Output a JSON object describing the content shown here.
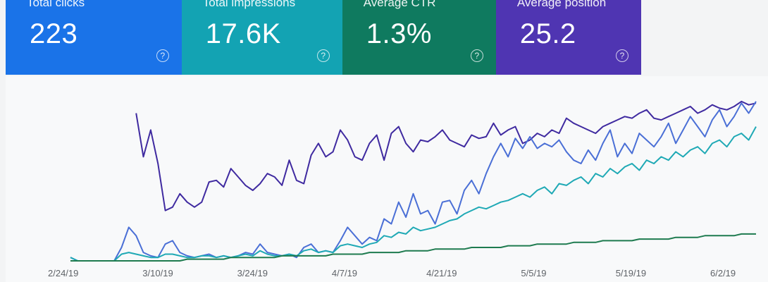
{
  "metrics": [
    {
      "label": "Total clicks",
      "value": "223",
      "help": "?",
      "color": "#1a73e8"
    },
    {
      "label": "Total impressions",
      "value": "17.6K",
      "help": "?",
      "color": "#13a3b3"
    },
    {
      "label": "Average CTR",
      "value": "1.3%",
      "help": "?",
      "color": "#0f7a5f"
    },
    {
      "label": "Average position",
      "value": "25.2",
      "help": "?",
      "color": "#4f35b2"
    }
  ],
  "chart_data": {
    "type": "line",
    "x_tick_labels": [
      "2/24/19",
      "3/10/19",
      "3/24/19",
      "4/7/19",
      "4/21/19",
      "5/5/19",
      "5/19/19",
      "6/2/19"
    ],
    "y_axis_visible": false,
    "grid": false,
    "series": [
      {
        "color": "#3f2aa0",
        "values": [
          null,
          null,
          null,
          null,
          null,
          null,
          null,
          null,
          null,
          88,
          62,
          78,
          58,
          30,
          32,
          40,
          35,
          32,
          35,
          47,
          48,
          44,
          55,
          50,
          45,
          42,
          46,
          52,
          50,
          45,
          60,
          48,
          46,
          63,
          70,
          62,
          65,
          78,
          72,
          62,
          60,
          70,
          75,
          60,
          76,
          80,
          70,
          65,
          72,
          71,
          74,
          78,
          72,
          70,
          68,
          75,
          73,
          74,
          82,
          75,
          78,
          80,
          70,
          72,
          76,
          74,
          78,
          76,
          85,
          82,
          80,
          78,
          76,
          80,
          82,
          84,
          86,
          85,
          88,
          90,
          85,
          84,
          86,
          88,
          90,
          92,
          88,
          90,
          93,
          91,
          90,
          92,
          95,
          93,
          94
        ]
      },
      {
        "color": "#4a6fd6",
        "values": [
          2,
          0,
          0,
          0,
          0,
          0,
          0,
          8,
          20,
          15,
          5,
          3,
          2,
          10,
          12,
          5,
          3,
          2,
          3,
          4,
          2,
          3,
          2,
          3,
          5,
          4,
          10,
          5,
          4,
          3,
          4,
          2,
          8,
          10,
          5,
          6,
          5,
          12,
          20,
          15,
          10,
          14,
          12,
          25,
          22,
          35,
          26,
          40,
          28,
          30,
          22,
          35,
          36,
          28,
          42,
          48,
          40,
          52,
          62,
          70,
          62,
          73,
          67,
          74,
          67,
          70,
          68,
          72,
          65,
          60,
          58,
          66,
          60,
          70,
          78,
          62,
          70,
          64,
          76,
          72,
          68,
          74,
          82,
          70,
          78,
          86,
          80,
          74,
          84,
          90,
          80,
          86,
          94,
          88,
          95
        ]
      },
      {
        "color": "#1fa9b5",
        "values": [
          2,
          0,
          0,
          0,
          0,
          0,
          0,
          4,
          5,
          4,
          3,
          2,
          2,
          4,
          4,
          3,
          2,
          2,
          3,
          3,
          2,
          3,
          2,
          3,
          4,
          3,
          6,
          4,
          3,
          3,
          4,
          3,
          6,
          7,
          5,
          6,
          5,
          9,
          10,
          9,
          8,
          10,
          11,
          15,
          14,
          17,
          16,
          20,
          18,
          19,
          20,
          22,
          24,
          25,
          28,
          30,
          32,
          31,
          33,
          35,
          36,
          38,
          40,
          38,
          42,
          44,
          40,
          46,
          45,
          48,
          50,
          46,
          52,
          50,
          55,
          52,
          56,
          58,
          54,
          60,
          58,
          62,
          60,
          65,
          62,
          66,
          68,
          64,
          70,
          72,
          68,
          74,
          76,
          72,
          80
        ]
      },
      {
        "color": "#1e7b4f",
        "values": [
          0,
          0,
          0,
          0,
          0,
          0,
          0,
          0,
          0,
          0,
          0,
          0,
          0,
          0,
          0,
          0,
          1,
          1,
          1,
          1,
          1,
          1,
          2,
          2,
          2,
          2,
          2,
          2,
          2,
          3,
          3,
          3,
          3,
          3,
          3,
          3,
          4,
          4,
          4,
          4,
          4,
          5,
          5,
          5,
          5,
          5,
          6,
          6,
          6,
          6,
          7,
          7,
          7,
          7,
          7,
          8,
          8,
          8,
          8,
          8,
          9,
          9,
          9,
          9,
          10,
          10,
          10,
          10,
          10,
          11,
          11,
          11,
          11,
          12,
          12,
          12,
          12,
          12,
          13,
          13,
          13,
          13,
          13,
          14,
          14,
          14,
          14,
          15,
          15,
          15,
          15,
          15,
          16,
          16,
          16
        ]
      }
    ]
  }
}
